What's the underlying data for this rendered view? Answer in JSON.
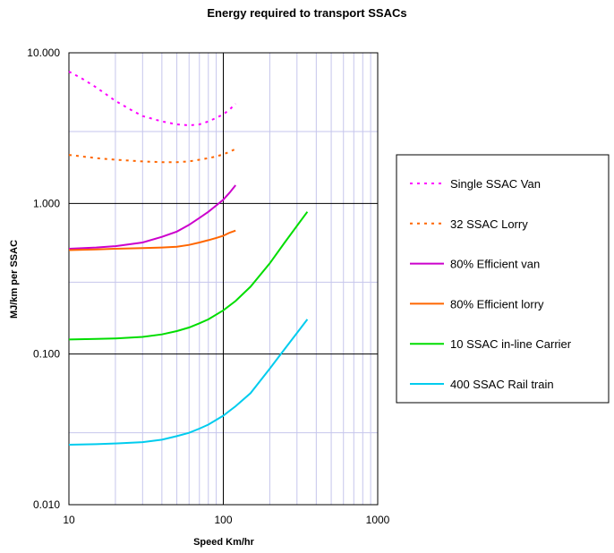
{
  "chart_data": {
    "type": "line",
    "title": "Energy required to transport SSACs",
    "xlabel": "Speed Km/hr",
    "ylabel": "MJ/km per SSAC",
    "x_scale": "log",
    "y_scale": "log",
    "xlim": [
      10,
      1000
    ],
    "ylim": [
      0.01,
      10
    ],
    "x_ticks": [
      "10",
      "100",
      "1000"
    ],
    "y_ticks": [
      "0.010",
      "0.100",
      "1.000",
      "10.000"
    ],
    "grid": true,
    "legend_position": "right",
    "series": [
      {
        "name": "Single SSAC Van",
        "color": "#ff00ff",
        "dash": "dotted",
        "x": [
          10,
          12,
          15,
          20,
          25,
          30,
          40,
          50,
          60,
          70,
          80,
          90,
          100,
          110,
          120
        ],
        "y": [
          7.5,
          6.8,
          5.9,
          4.8,
          4.2,
          3.8,
          3.5,
          3.35,
          3.3,
          3.35,
          3.5,
          3.7,
          3.9,
          4.2,
          4.6
        ]
      },
      {
        "name": "32 SSAC Lorry",
        "color": "#ff6600",
        "dash": "dotted",
        "x": [
          10,
          15,
          20,
          30,
          40,
          50,
          60,
          70,
          80,
          90,
          100,
          110,
          120
        ],
        "y": [
          2.1,
          2.0,
          1.95,
          1.9,
          1.88,
          1.88,
          1.9,
          1.95,
          2.0,
          2.05,
          2.12,
          2.2,
          2.3
        ]
      },
      {
        "name": "80% Efficient van",
        "color": "#cc00cc",
        "dash": "solid",
        "x": [
          10,
          15,
          20,
          30,
          40,
          50,
          60,
          70,
          80,
          90,
          100,
          110,
          120
        ],
        "y": [
          0.5,
          0.51,
          0.52,
          0.55,
          0.6,
          0.65,
          0.72,
          0.8,
          0.88,
          0.97,
          1.06,
          1.18,
          1.32
        ]
      },
      {
        "name": "80% Efficient lorry",
        "color": "#ff6600",
        "dash": "solid",
        "x": [
          10,
          15,
          20,
          30,
          40,
          50,
          60,
          70,
          80,
          90,
          100,
          110,
          120
        ],
        "y": [
          0.49,
          0.495,
          0.5,
          0.505,
          0.51,
          0.515,
          0.53,
          0.55,
          0.57,
          0.59,
          0.61,
          0.64,
          0.66
        ]
      },
      {
        "name": "10 SSAC in-line Carrier",
        "color": "#00dd00",
        "dash": "solid",
        "x": [
          10,
          15,
          20,
          30,
          40,
          50,
          60,
          70,
          80,
          100,
          120,
          150,
          200,
          250,
          300,
          350
        ],
        "y": [
          0.125,
          0.126,
          0.127,
          0.13,
          0.135,
          0.142,
          0.15,
          0.16,
          0.17,
          0.195,
          0.225,
          0.28,
          0.4,
          0.55,
          0.71,
          0.88
        ]
      },
      {
        "name": "400 SSAC Rail train",
        "color": "#00ccee",
        "dash": "solid",
        "x": [
          10,
          15,
          20,
          30,
          40,
          50,
          60,
          70,
          80,
          100,
          120,
          150,
          200,
          250,
          300,
          350
        ],
        "y": [
          0.025,
          0.0252,
          0.0255,
          0.026,
          0.027,
          0.0285,
          0.03,
          0.032,
          0.034,
          0.039,
          0.045,
          0.055,
          0.08,
          0.108,
          0.138,
          0.17
        ]
      }
    ]
  }
}
